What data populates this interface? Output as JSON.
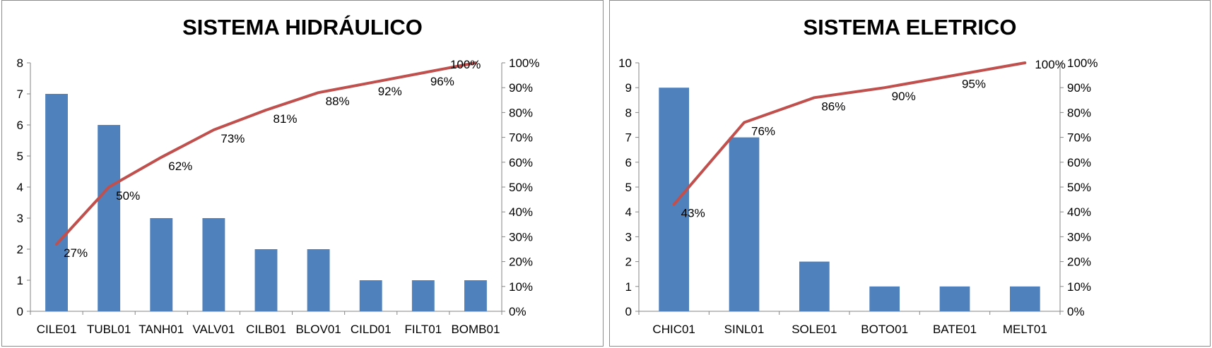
{
  "chart_data": [
    {
      "type": "bar",
      "title": "SISTEMA HIDRÁULICO",
      "categories": [
        "CILE01",
        "TUBL01",
        "TANH01",
        "VALV01",
        "CILB01",
        "BLOV01",
        "CILD01",
        "FILT01",
        "BOMB01"
      ],
      "series": [
        {
          "values": [
            7,
            6,
            3,
            3,
            2,
            2,
            1,
            1,
            1
          ],
          "color": "#4F81BD"
        },
        {
          "type": "line",
          "axis": "secondary",
          "values": [
            27,
            50,
            62,
            73,
            81,
            88,
            92,
            96,
            100
          ],
          "labels": [
            "27%",
            "50%",
            "62%",
            "73%",
            "81%",
            "88%",
            "92%",
            "96%",
            "100%"
          ],
          "color": "#C0504D"
        }
      ],
      "ylim": [
        0,
        8
      ],
      "yticks": [
        "0",
        "1",
        "2",
        "3",
        "4",
        "5",
        "6",
        "7",
        "8"
      ],
      "y2lim": [
        0,
        100
      ],
      "y2ticks": [
        "0%",
        "10%",
        "20%",
        "30%",
        "40%",
        "50%",
        "60%",
        "70%",
        "80%",
        "90%",
        "100%"
      ],
      "grid": false
    },
    {
      "type": "bar",
      "title": "SISTEMA ELETRICO",
      "categories": [
        "CHIC01",
        "SINL01",
        "SOLE01",
        "BOTO01",
        "BATE01",
        "MELT01"
      ],
      "series": [
        {
          "values": [
            9,
            7,
            2,
            1,
            1,
            1
          ],
          "color": "#4F81BD"
        },
        {
          "type": "line",
          "axis": "secondary",
          "values": [
            43,
            76,
            86,
            90,
            95,
            100
          ],
          "labels": [
            "43%",
            "76%",
            "86%",
            "90%",
            "95%",
            "100%"
          ],
          "color": "#C0504D"
        }
      ],
      "ylim": [
        0,
        10
      ],
      "yticks": [
        "0",
        "1",
        "2",
        "3",
        "4",
        "5",
        "6",
        "7",
        "8",
        "9",
        "10"
      ],
      "y2lim": [
        0,
        100
      ],
      "y2ticks": [
        "0%",
        "10%",
        "20%",
        "30%",
        "40%",
        "50%",
        "60%",
        "70%",
        "80%",
        "90%",
        "100%"
      ],
      "grid": false
    }
  ]
}
